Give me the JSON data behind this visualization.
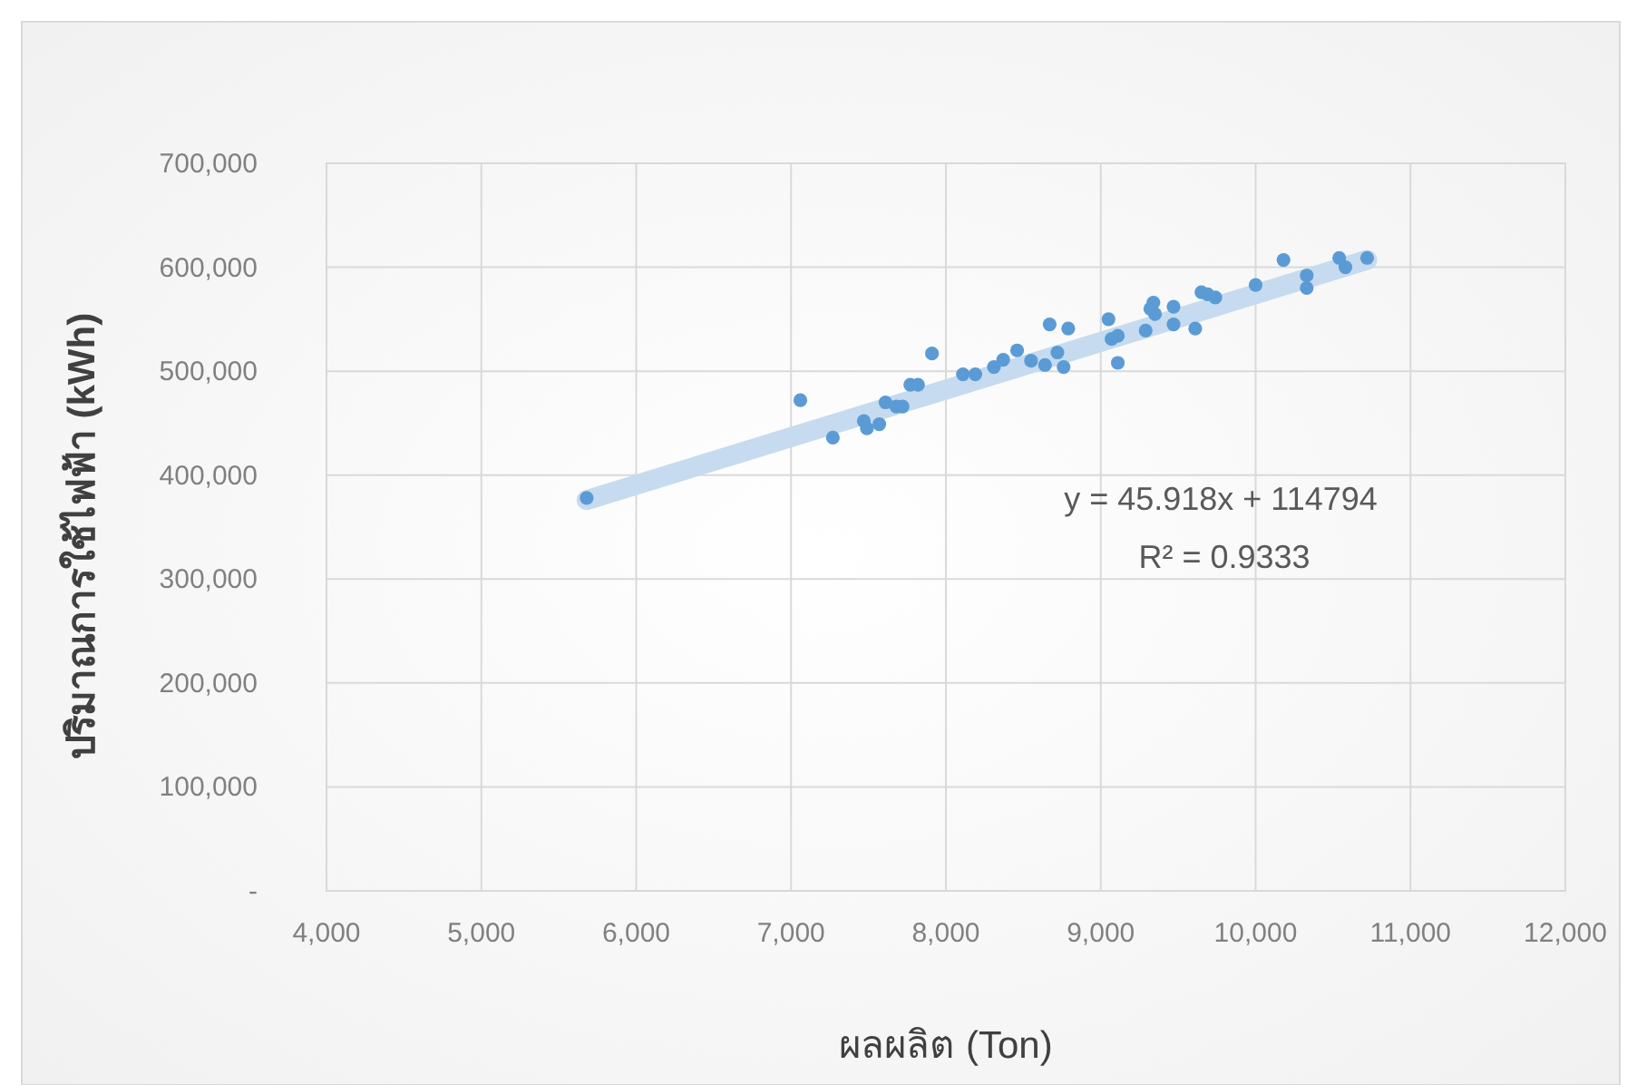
{
  "chart_data": {
    "type": "scatter",
    "xlabel": "ผลผลิต (Ton)",
    "ylabel": "ปริมาณการใช้ไฟฟ้า (kWh)",
    "xlim": [
      4000,
      12000
    ],
    "xticks": [
      {
        "value": 4000,
        "label": "4,000"
      },
      {
        "value": 5000,
        "label": "5,000"
      },
      {
        "value": 6000,
        "label": "6,000"
      },
      {
        "value": 7000,
        "label": "7,000"
      },
      {
        "value": 8000,
        "label": "8,000"
      },
      {
        "value": 9000,
        "label": "9,000"
      },
      {
        "value": 10000,
        "label": "10,000"
      },
      {
        "value": 11000,
        "label": "11,000"
      },
      {
        "value": 12000,
        "label": "12,000"
      }
    ],
    "ylim": [
      0,
      700000
    ],
    "yticks": [
      {
        "value": 0,
        "label": "-"
      },
      {
        "value": 100000,
        "label": "100,000"
      },
      {
        "value": 200000,
        "label": "200,000"
      },
      {
        "value": 300000,
        "label": "300,000"
      },
      {
        "value": 400000,
        "label": "400,000"
      },
      {
        "value": 500000,
        "label": "500,000"
      },
      {
        "value": 600000,
        "label": "600,000"
      },
      {
        "value": 700000,
        "label": "700,000"
      }
    ],
    "grid": true,
    "series": [
      {
        "type": "line",
        "color": "#c6dbef",
        "x": [
          5680,
          10720
        ],
        "values": [
          376000,
          607000
        ]
      },
      {
        "color": "#5b9bd5",
        "marker": "circle",
        "x": [
          5680,
          7060,
          7270,
          7470,
          7490,
          7570,
          7610,
          7680,
          7720,
          7770,
          7820,
          7910,
          8110,
          8190,
          8310,
          8370,
          8460,
          8550,
          8640,
          8670,
          8720,
          8760,
          8790,
          9050,
          9070,
          9110,
          9110,
          9290,
          9320,
          9340,
          9350,
          9470,
          9470,
          9610,
          9650,
          9690,
          9740,
          10000,
          10180,
          10330,
          10330,
          10540,
          10580,
          10720
        ],
        "values": [
          378000,
          472000,
          436000,
          452000,
          445000,
          449000,
          470000,
          466000,
          466000,
          487000,
          487000,
          517000,
          497000,
          497000,
          504000,
          511000,
          520000,
          510000,
          506000,
          545000,
          518000,
          504000,
          541000,
          550000,
          531000,
          534000,
          508000,
          539000,
          560000,
          566000,
          555000,
          562000,
          545000,
          541000,
          576000,
          574000,
          571000,
          583000,
          607000,
          592000,
          580000,
          609000,
          600000,
          609000
        ]
      }
    ],
    "annotations": [
      "y = 45.918x + 114794",
      "R² = 0.9333"
    ]
  }
}
